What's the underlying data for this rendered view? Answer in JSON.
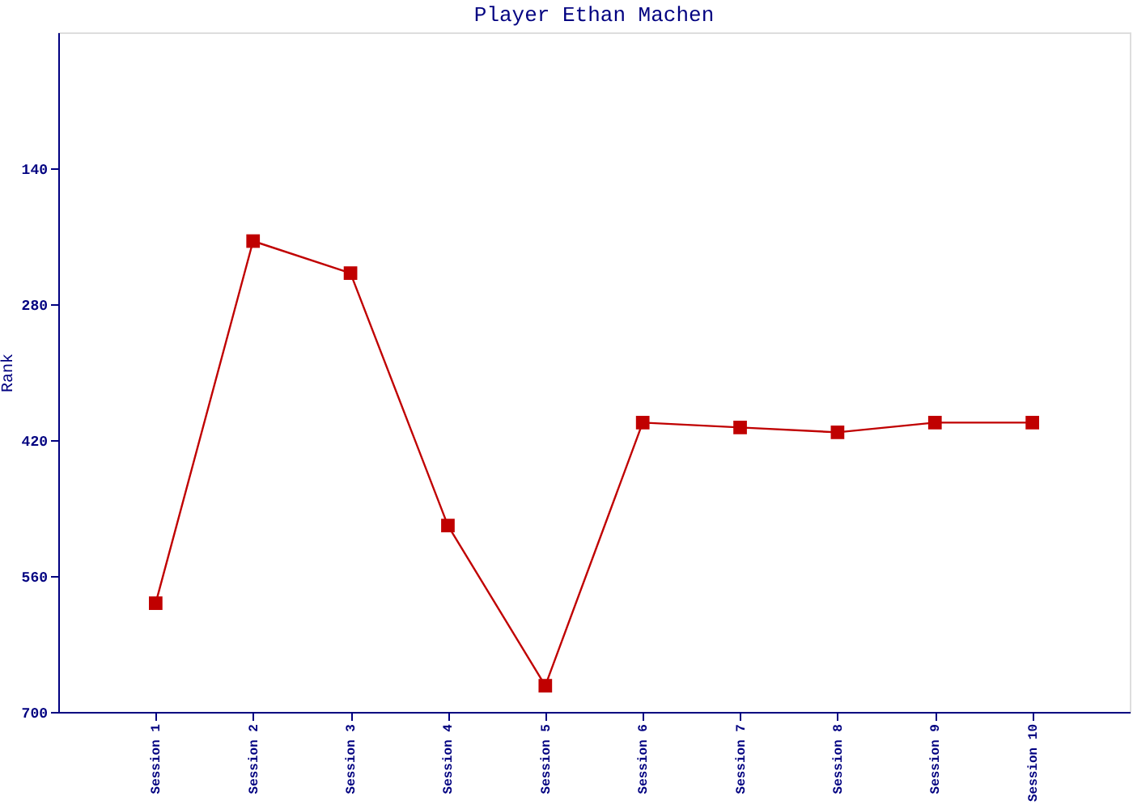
{
  "chart_data": {
    "type": "line",
    "title": "Player Ethan Machen",
    "ylabel": "Rank",
    "categories": [
      "Session 1",
      "Session 2",
      "Session 3",
      "Session 4",
      "Session 5",
      "Session 6",
      "Session 7",
      "Session 8",
      "Session 9",
      "Session 10"
    ],
    "series": [
      {
        "color": "#c00000",
        "values": [
          588,
          215,
          248,
          508,
          673,
          402,
          407,
          412,
          402,
          402
        ]
      }
    ],
    "ylim": [
      700,
      0
    ],
    "yticks": [
      140,
      280,
      420,
      560,
      700
    ],
    "grid": false,
    "marker": "square",
    "line_style": "solid"
  }
}
